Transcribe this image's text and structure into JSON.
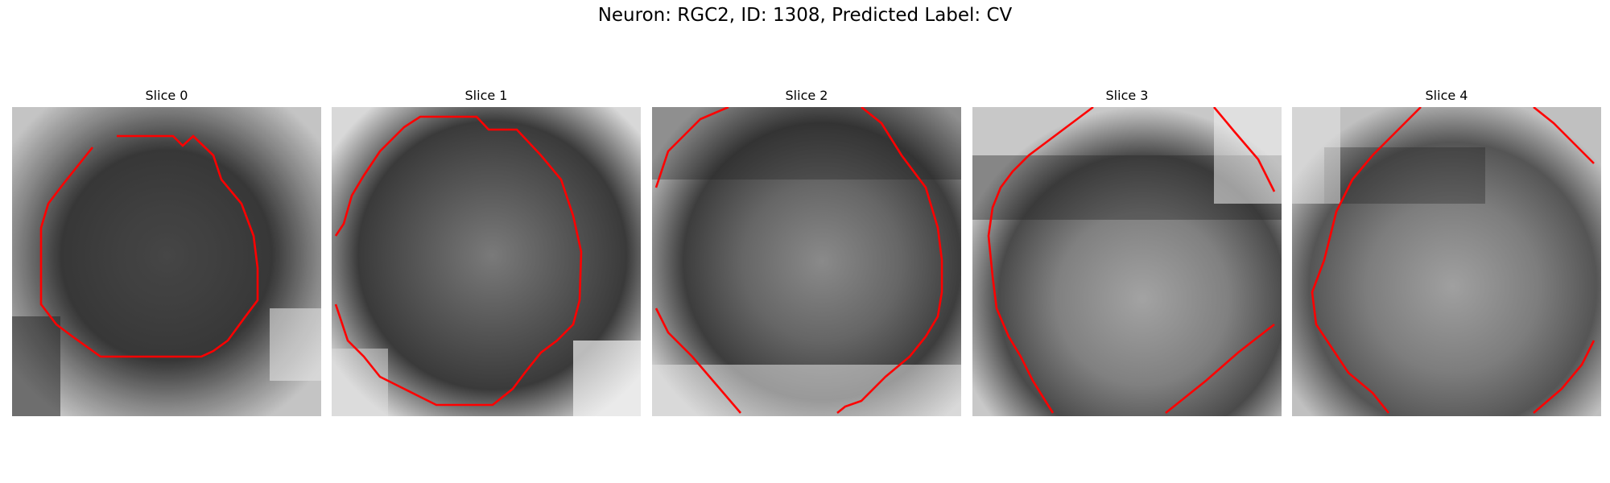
{
  "figure": {
    "suptitle": "Neuron: RGC2, ID: 1308, Predicted Label: CV"
  },
  "colors": {
    "contour": "#ff0000",
    "background": "#ffffff"
  },
  "panels": [
    {
      "title": "Slice 0"
    },
    {
      "title": "Slice 1"
    },
    {
      "title": "Slice 2"
    },
    {
      "title": "Slice 3"
    },
    {
      "title": "Slice 4"
    }
  ]
}
